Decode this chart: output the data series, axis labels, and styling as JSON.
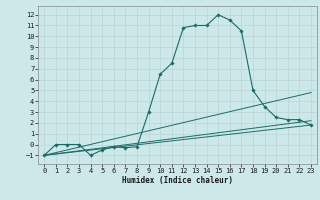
{
  "title": "",
  "xlabel": "Humidex (Indice chaleur)",
  "ylabel": "",
  "bg_color": "#cce8e8",
  "grid_color": "#b8d4d4",
  "line_color": "#1a6b6b",
  "xlim": [
    -0.5,
    23.5
  ],
  "ylim": [
    -1.8,
    12.8
  ],
  "xticks": [
    0,
    1,
    2,
    3,
    4,
    5,
    6,
    7,
    8,
    9,
    10,
    11,
    12,
    13,
    14,
    15,
    16,
    17,
    18,
    19,
    20,
    21,
    22,
    23
  ],
  "yticks": [
    -1,
    0,
    1,
    2,
    3,
    4,
    5,
    6,
    7,
    8,
    9,
    10,
    11,
    12
  ],
  "series": [
    [
      0,
      -1
    ],
    [
      1,
      0
    ],
    [
      2,
      0
    ],
    [
      3,
      0
    ],
    [
      4,
      -1
    ],
    [
      5,
      -0.5
    ],
    [
      6,
      -0.2
    ],
    [
      7,
      -0.3
    ],
    [
      8,
      -0.2
    ],
    [
      9,
      3
    ],
    [
      10,
      6.5
    ],
    [
      11,
      7.5
    ],
    [
      12,
      10.8
    ],
    [
      13,
      11.0
    ],
    [
      14,
      11.0
    ],
    [
      15,
      12.0
    ],
    [
      16,
      11.5
    ],
    [
      17,
      10.5
    ],
    [
      18,
      5.0
    ],
    [
      19,
      3.5
    ],
    [
      20,
      2.5
    ],
    [
      21,
      2.3
    ],
    [
      22,
      2.3
    ],
    [
      23,
      1.8
    ]
  ],
  "line2": [
    [
      0,
      -1
    ],
    [
      23,
      4.8
    ]
  ],
  "line3": [
    [
      0,
      -1
    ],
    [
      23,
      2.2
    ]
  ],
  "line4": [
    [
      0,
      -1
    ],
    [
      23,
      1.8
    ]
  ],
  "xlabel_fontsize": 5.5,
  "tick_fontsize": 5,
  "marker_size": 1.8,
  "line_width": 0.8
}
